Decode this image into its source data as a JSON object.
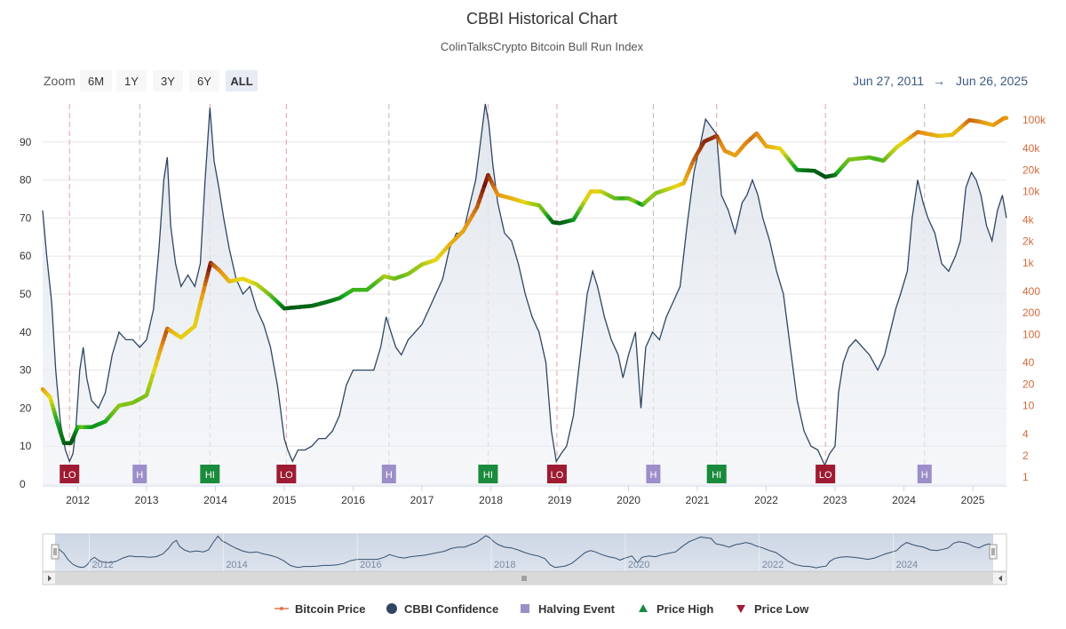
{
  "chart_data": {
    "type": "line",
    "title": "CBBI Historical Chart",
    "subtitle": "ColinTalksCrypto Bitcoin Bull Run Index",
    "zoom": {
      "label": "Zoom",
      "buttons": [
        "6M",
        "1Y",
        "3Y",
        "6Y",
        "ALL"
      ],
      "selected": "ALL"
    },
    "range": {
      "from": "Jun 27, 2011",
      "arrow": "→",
      "to": "Jun 26, 2025"
    },
    "x_range": [
      2011.49,
      2025.49
    ],
    "x_ticks": [
      "2012",
      "2013",
      "2014",
      "2015",
      "2016",
      "2017",
      "2018",
      "2019",
      "2020",
      "2021",
      "2022",
      "2023",
      "2024",
      "2025"
    ],
    "navigator_ticks": [
      "2012",
      "2014",
      "2016",
      "2018",
      "2020",
      "2022",
      "2024"
    ],
    "left_axis": {
      "min": 0,
      "max": 100,
      "ticks": [
        "0",
        "10",
        "20",
        "30",
        "40",
        "50",
        "60",
        "70",
        "80",
        "90"
      ]
    },
    "right_axis": {
      "scale": "log",
      "min": 1,
      "max": 150000,
      "ticks": [
        "1",
        "2",
        "4",
        "10",
        "20",
        "40",
        "100",
        "200",
        "400",
        "1k",
        "2k",
        "4k",
        "10k",
        "20k",
        "40k",
        "100k"
      ]
    },
    "grid": true,
    "legend_position": "bottom",
    "legend": [
      "Bitcoin Price",
      "CBBI Confidence",
      "Halving Event",
      "Price High",
      "Price Low"
    ],
    "colors": {
      "cbbi_line": "#2f4562",
      "cbbi_fill": "#e8ecf1",
      "price_low": "#9e1b32",
      "price_high": "#1a8a3c",
      "halving": "#9b8ec9",
      "price_legend": "#e0754a",
      "range_text": "#3d5a80"
    },
    "series": [
      {
        "name": "CBBI Confidence",
        "axis": "left",
        "points": [
          [
            2011.49,
            72
          ],
          [
            2011.55,
            60
          ],
          [
            2011.62,
            48
          ],
          [
            2011.68,
            30
          ],
          [
            2011.75,
            16
          ],
          [
            2011.82,
            9
          ],
          [
            2011.88,
            6
          ],
          [
            2011.93,
            8
          ],
          [
            2011.97,
            14
          ],
          [
            2012.03,
            30
          ],
          [
            2012.08,
            36
          ],
          [
            2012.13,
            28
          ],
          [
            2012.2,
            22
          ],
          [
            2012.3,
            20
          ],
          [
            2012.4,
            24
          ],
          [
            2012.5,
            34
          ],
          [
            2012.6,
            40
          ],
          [
            2012.7,
            38
          ],
          [
            2012.8,
            38
          ],
          [
            2012.9,
            36
          ],
          [
            2013.0,
            38
          ],
          [
            2013.1,
            46
          ],
          [
            2013.18,
            62
          ],
          [
            2013.25,
            80
          ],
          [
            2013.3,
            86
          ],
          [
            2013.35,
            68
          ],
          [
            2013.42,
            58
          ],
          [
            2013.5,
            52
          ],
          [
            2013.6,
            55
          ],
          [
            2013.7,
            52
          ],
          [
            2013.78,
            58
          ],
          [
            2013.85,
            80
          ],
          [
            2013.92,
            99
          ],
          [
            2013.98,
            85
          ],
          [
            2014.05,
            78
          ],
          [
            2014.12,
            70
          ],
          [
            2014.2,
            62
          ],
          [
            2014.3,
            54
          ],
          [
            2014.4,
            50
          ],
          [
            2014.5,
            52
          ],
          [
            2014.6,
            46
          ],
          [
            2014.7,
            42
          ],
          [
            2014.8,
            36
          ],
          [
            2014.9,
            26
          ],
          [
            2015.0,
            12
          ],
          [
            2015.05,
            9
          ],
          [
            2015.12,
            6
          ],
          [
            2015.2,
            9
          ],
          [
            2015.3,
            9
          ],
          [
            2015.4,
            10
          ],
          [
            2015.5,
            12
          ],
          [
            2015.6,
            12
          ],
          [
            2015.7,
            14
          ],
          [
            2015.8,
            18
          ],
          [
            2015.9,
            26
          ],
          [
            2016.0,
            30
          ],
          [
            2016.1,
            30
          ],
          [
            2016.2,
            30
          ],
          [
            2016.3,
            30
          ],
          [
            2016.4,
            36
          ],
          [
            2016.48,
            44
          ],
          [
            2016.55,
            40
          ],
          [
            2016.62,
            36
          ],
          [
            2016.7,
            34
          ],
          [
            2016.8,
            38
          ],
          [
            2016.9,
            40
          ],
          [
            2017.0,
            42
          ],
          [
            2017.1,
            46
          ],
          [
            2017.2,
            50
          ],
          [
            2017.3,
            54
          ],
          [
            2017.4,
            62
          ],
          [
            2017.5,
            66
          ],
          [
            2017.6,
            66
          ],
          [
            2017.7,
            74
          ],
          [
            2017.78,
            80
          ],
          [
            2017.85,
            90
          ],
          [
            2017.92,
            100
          ],
          [
            2017.97,
            95
          ],
          [
            2018.03,
            84
          ],
          [
            2018.1,
            74
          ],
          [
            2018.2,
            66
          ],
          [
            2018.3,
            64
          ],
          [
            2018.4,
            58
          ],
          [
            2018.5,
            50
          ],
          [
            2018.6,
            44
          ],
          [
            2018.7,
            40
          ],
          [
            2018.8,
            32
          ],
          [
            2018.88,
            14
          ],
          [
            2018.95,
            6
          ],
          [
            2019.02,
            8
          ],
          [
            2019.1,
            10
          ],
          [
            2019.2,
            18
          ],
          [
            2019.3,
            34
          ],
          [
            2019.4,
            50
          ],
          [
            2019.48,
            56
          ],
          [
            2019.55,
            52
          ],
          [
            2019.65,
            44
          ],
          [
            2019.75,
            38
          ],
          [
            2019.85,
            34
          ],
          [
            2019.92,
            28
          ],
          [
            2020.0,
            34
          ],
          [
            2020.1,
            40
          ],
          [
            2020.18,
            20
          ],
          [
            2020.25,
            36
          ],
          [
            2020.35,
            40
          ],
          [
            2020.45,
            38
          ],
          [
            2020.55,
            44
          ],
          [
            2020.65,
            48
          ],
          [
            2020.75,
            52
          ],
          [
            2020.85,
            68
          ],
          [
            2020.95,
            82
          ],
          [
            2021.05,
            90
          ],
          [
            2021.12,
            96
          ],
          [
            2021.2,
            94
          ],
          [
            2021.28,
            92
          ],
          [
            2021.35,
            76
          ],
          [
            2021.45,
            72
          ],
          [
            2021.55,
            66
          ],
          [
            2021.65,
            74
          ],
          [
            2021.72,
            76
          ],
          [
            2021.8,
            80
          ],
          [
            2021.88,
            76
          ],
          [
            2021.95,
            70
          ],
          [
            2022.05,
            64
          ],
          [
            2022.15,
            56
          ],
          [
            2022.25,
            50
          ],
          [
            2022.35,
            36
          ],
          [
            2022.45,
            22
          ],
          [
            2022.55,
            14
          ],
          [
            2022.65,
            10
          ],
          [
            2022.75,
            9
          ],
          [
            2022.85,
            5
          ],
          [
            2022.92,
            8
          ],
          [
            2023.0,
            10
          ],
          [
            2023.05,
            24
          ],
          [
            2023.12,
            32
          ],
          [
            2023.2,
            36
          ],
          [
            2023.3,
            38
          ],
          [
            2023.4,
            36
          ],
          [
            2023.5,
            34
          ],
          [
            2023.62,
            30
          ],
          [
            2023.72,
            34
          ],
          [
            2023.8,
            40
          ],
          [
            2023.88,
            46
          ],
          [
            2023.95,
            50
          ],
          [
            2024.05,
            56
          ],
          [
            2024.12,
            70
          ],
          [
            2024.2,
            80
          ],
          [
            2024.28,
            74
          ],
          [
            2024.35,
            70
          ],
          [
            2024.45,
            66
          ],
          [
            2024.55,
            58
          ],
          [
            2024.65,
            56
          ],
          [
            2024.75,
            60
          ],
          [
            2024.82,
            64
          ],
          [
            2024.9,
            78
          ],
          [
            2024.98,
            82
          ],
          [
            2025.05,
            80
          ],
          [
            2025.12,
            76
          ],
          [
            2025.2,
            68
          ],
          [
            2025.28,
            64
          ],
          [
            2025.36,
            72
          ],
          [
            2025.43,
            76
          ],
          [
            2025.49,
            70
          ]
        ]
      },
      {
        "name": "Bitcoin Price",
        "axis": "right",
        "points": [
          [
            2011.49,
            17
          ],
          [
            2011.6,
            13
          ],
          [
            2011.7,
            6
          ],
          [
            2011.8,
            3
          ],
          [
            2011.9,
            3
          ],
          [
            2012.0,
            5
          ],
          [
            2012.2,
            5
          ],
          [
            2012.4,
            6
          ],
          [
            2012.6,
            10
          ],
          [
            2012.8,
            11
          ],
          [
            2013.0,
            14
          ],
          [
            2013.2,
            60
          ],
          [
            2013.3,
            120
          ],
          [
            2013.5,
            90
          ],
          [
            2013.7,
            130
          ],
          [
            2013.85,
            500
          ],
          [
            2013.93,
            1000
          ],
          [
            2014.05,
            800
          ],
          [
            2014.2,
            550
          ],
          [
            2014.4,
            600
          ],
          [
            2014.6,
            500
          ],
          [
            2014.8,
            350
          ],
          [
            2015.0,
            230
          ],
          [
            2015.2,
            240
          ],
          [
            2015.4,
            250
          ],
          [
            2015.6,
            280
          ],
          [
            2015.8,
            320
          ],
          [
            2016.0,
            420
          ],
          [
            2016.2,
            420
          ],
          [
            2016.45,
            650
          ],
          [
            2016.6,
            600
          ],
          [
            2016.8,
            700
          ],
          [
            2017.0,
            950
          ],
          [
            2017.2,
            1100
          ],
          [
            2017.4,
            1800
          ],
          [
            2017.6,
            2800
          ],
          [
            2017.8,
            6000
          ],
          [
            2017.96,
            17000
          ],
          [
            2018.1,
            9000
          ],
          [
            2018.3,
            8000
          ],
          [
            2018.5,
            7000
          ],
          [
            2018.7,
            6400
          ],
          [
            2018.9,
            3700
          ],
          [
            2019.0,
            3600
          ],
          [
            2019.2,
            4000
          ],
          [
            2019.45,
            10000
          ],
          [
            2019.6,
            10000
          ],
          [
            2019.8,
            8000
          ],
          [
            2020.0,
            8000
          ],
          [
            2020.2,
            6500
          ],
          [
            2020.4,
            9500
          ],
          [
            2020.6,
            11000
          ],
          [
            2020.8,
            13000
          ],
          [
            2020.95,
            28000
          ],
          [
            2021.1,
            50000
          ],
          [
            2021.28,
            60000
          ],
          [
            2021.4,
            37000
          ],
          [
            2021.55,
            32000
          ],
          [
            2021.7,
            47000
          ],
          [
            2021.86,
            65000
          ],
          [
            2022.0,
            43000
          ],
          [
            2022.2,
            40000
          ],
          [
            2022.45,
            20000
          ],
          [
            2022.7,
            19500
          ],
          [
            2022.86,
            16000
          ],
          [
            2023.0,
            17000
          ],
          [
            2023.2,
            28000
          ],
          [
            2023.5,
            30000
          ],
          [
            2023.7,
            27000
          ],
          [
            2023.9,
            42000
          ],
          [
            2024.2,
            68000
          ],
          [
            2024.5,
            60000
          ],
          [
            2024.7,
            62000
          ],
          [
            2024.95,
            100000
          ],
          [
            2025.1,
            95000
          ],
          [
            2025.3,
            85000
          ],
          [
            2025.45,
            106000
          ],
          [
            2025.49,
            107000
          ]
        ]
      }
    ],
    "markers": [
      {
        "label": "LO",
        "type": "Price Low",
        "x": 2011.88
      },
      {
        "label": "H",
        "type": "Halving Event",
        "x": 2012.9
      },
      {
        "label": "HI",
        "type": "Price High",
        "x": 2013.92
      },
      {
        "label": "LO",
        "type": "Price Low",
        "x": 2015.03
      },
      {
        "label": "H",
        "type": "Halving Event",
        "x": 2016.52
      },
      {
        "label": "HI",
        "type": "Price High",
        "x": 2017.96
      },
      {
        "label": "LO",
        "type": "Price Low",
        "x": 2018.96
      },
      {
        "label": "H",
        "type": "Halving Event",
        "x": 2020.36
      },
      {
        "label": "HI",
        "type": "Price High",
        "x": 2021.28
      },
      {
        "label": "LO",
        "type": "Price Low",
        "x": 2022.86
      },
      {
        "label": "H",
        "type": "Halving Event",
        "x": 2024.3
      }
    ]
  }
}
